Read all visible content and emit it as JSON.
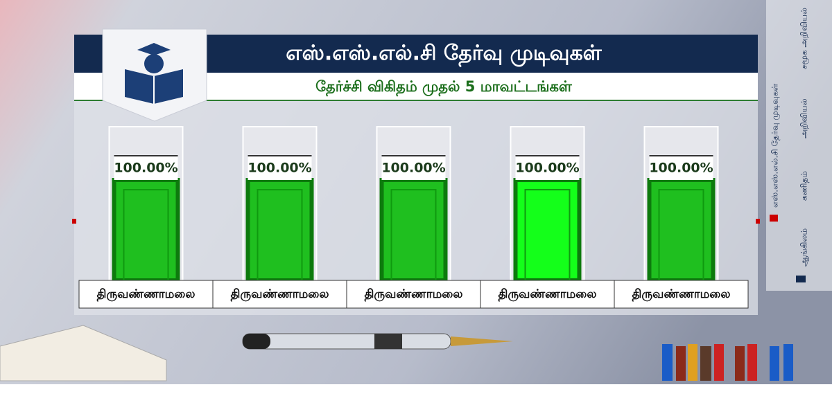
{
  "chart_data": {
    "type": "bar",
    "title": "எஸ்.எஸ்.எல்.சி தேர்வு முடிவுகள்",
    "subtitle": "தேர்ச்சி  விகிதம் முதல் 5 மாவட்டங்கள்",
    "categories": [
      "திருவண்ணாமலை",
      "திருவண்ணாமலை",
      "திருவண்ணாமலை",
      "திருவண்ணாமலை",
      "திருவண்ணாமலை"
    ],
    "values": [
      100,
      100,
      100,
      100,
      100
    ],
    "value_labels": [
      "100.00%",
      "100.00%",
      "100.00%",
      "100.00%",
      "100.00%"
    ],
    "colors": [
      "#1fbf1f",
      "#1fbf1f",
      "#1fbf1f",
      "#14ff1a",
      "#1fbf1f"
    ],
    "ylim": [
      0,
      100
    ]
  },
  "side_menu": [
    "எஸ்.எஸ்.எல்.சி தேர்வு முடிவுகள்",
    "ஆங்கிலம்",
    "கணிதம்",
    "அறிவியல்",
    "சமூக அறிவியல்"
  ]
}
